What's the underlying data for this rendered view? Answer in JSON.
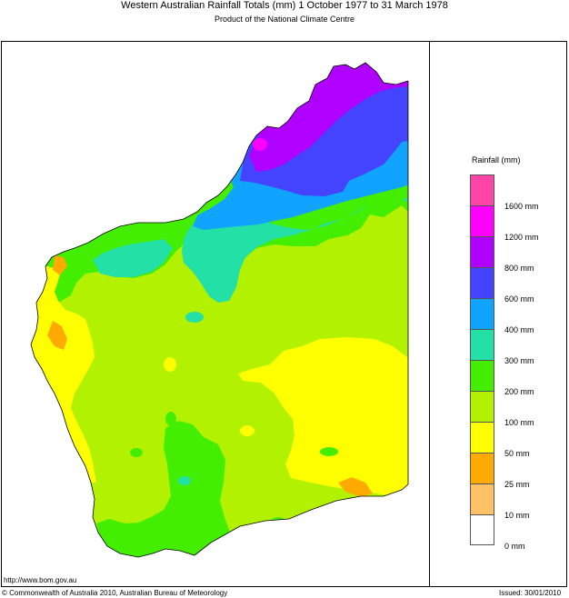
{
  "title": "Western Australian Rainfall Totals (mm) 1 October 1977 to 31 March 1978",
  "subtitle": "Product of the National Climate Centre",
  "legend": {
    "title": "Rainfall (mm)",
    "labels": [
      "1600 mm",
      "1200 mm",
      "800 mm",
      "600 mm",
      "400 mm",
      "300 mm",
      "200 mm",
      "100 mm",
      "50 mm",
      "25 mm",
      "10 mm",
      "0 mm"
    ],
    "colors": [
      "#ff44a8",
      "#ff00ff",
      "#b000ff",
      "#4444ff",
      "#10a4ff",
      "#22e0a6",
      "#44ee00",
      "#b2f200",
      "#ffff00",
      "#ffaa00",
      "#ffc166",
      "#ffffff"
    ]
  },
  "footer": {
    "url": "http://www.bom.gov.au",
    "copyright": "© Commonwealth of Australia 2010, Australian Bureau of Meteorology",
    "issued": "Issued: 30/01/2010"
  }
}
